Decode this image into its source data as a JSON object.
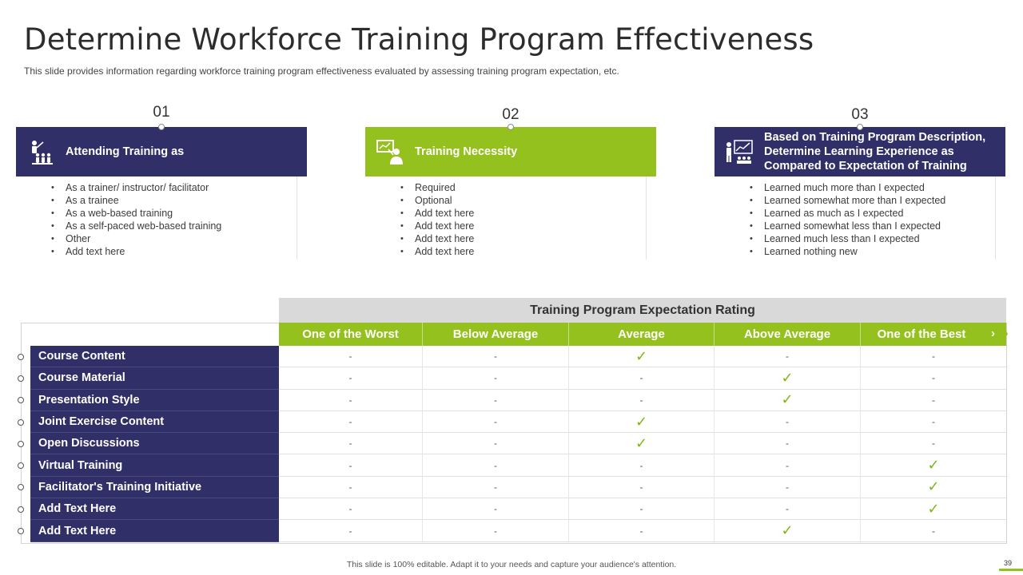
{
  "title": "Determine Workforce Training Program Effectiveness",
  "subtitle": "This slide provides information regarding workforce training program effectiveness evaluated by assessing training program expectation, etc.",
  "columns": [
    {
      "number": "01",
      "heading": "Attending Training as",
      "icon": "trainer-audience-icon",
      "items": [
        "As a trainer/ instructor/ facilitator",
        "As a trainee",
        "As a web-based  training",
        "As a self-paced  web-based training",
        "Other",
        "Add text here"
      ]
    },
    {
      "number": "02",
      "heading": "Training Necessity",
      "icon": "presentation-board-icon",
      "items": [
        "Required",
        "Optional",
        "Add text here",
        "Add text here",
        "Add text here",
        "Add text here"
      ]
    },
    {
      "number": "03",
      "heading": "Based on Training Program Description, Determine Learning Experience as Compared to Expectation of Training",
      "icon": "chart-presenter-icon",
      "items": [
        "Learned  much more than I expected",
        "Learned  somewhat more than I expected",
        "Learned  as much as I expected",
        "Learned  somewhat less than I expected",
        "Learned  much less than I expected",
        "Learned  nothing new"
      ]
    }
  ],
  "table": {
    "header": "Training Program Expectation Rating",
    "columns": [
      "One of the Worst",
      "Below Average",
      "Average",
      "Above Average",
      "One of the Best"
    ],
    "empty_symbol": "-",
    "check_symbol": "✓",
    "rows": [
      {
        "label": "Course Content",
        "rating": 2
      },
      {
        "label": "Course Material",
        "rating": 3
      },
      {
        "label": "Presentation Style",
        "rating": 3
      },
      {
        "label": "Joint Exercise Content",
        "rating": 2
      },
      {
        "label": "Open Discussions",
        "rating": 2
      },
      {
        "label": "Virtual Training",
        "rating": 4
      },
      {
        "label": "Facilitator's Training Initiative",
        "rating": 4
      },
      {
        "label": "Add  Text Here",
        "rating": 4
      },
      {
        "label": "Add  Text Here",
        "rating": 3
      }
    ]
  },
  "footer": "This slide is 100% editable. Adapt it to your needs and capture your audience's attention.",
  "page_number": "39",
  "colors": {
    "navy": "#302f68",
    "green": "#95c11f",
    "check": "#7fb515"
  }
}
